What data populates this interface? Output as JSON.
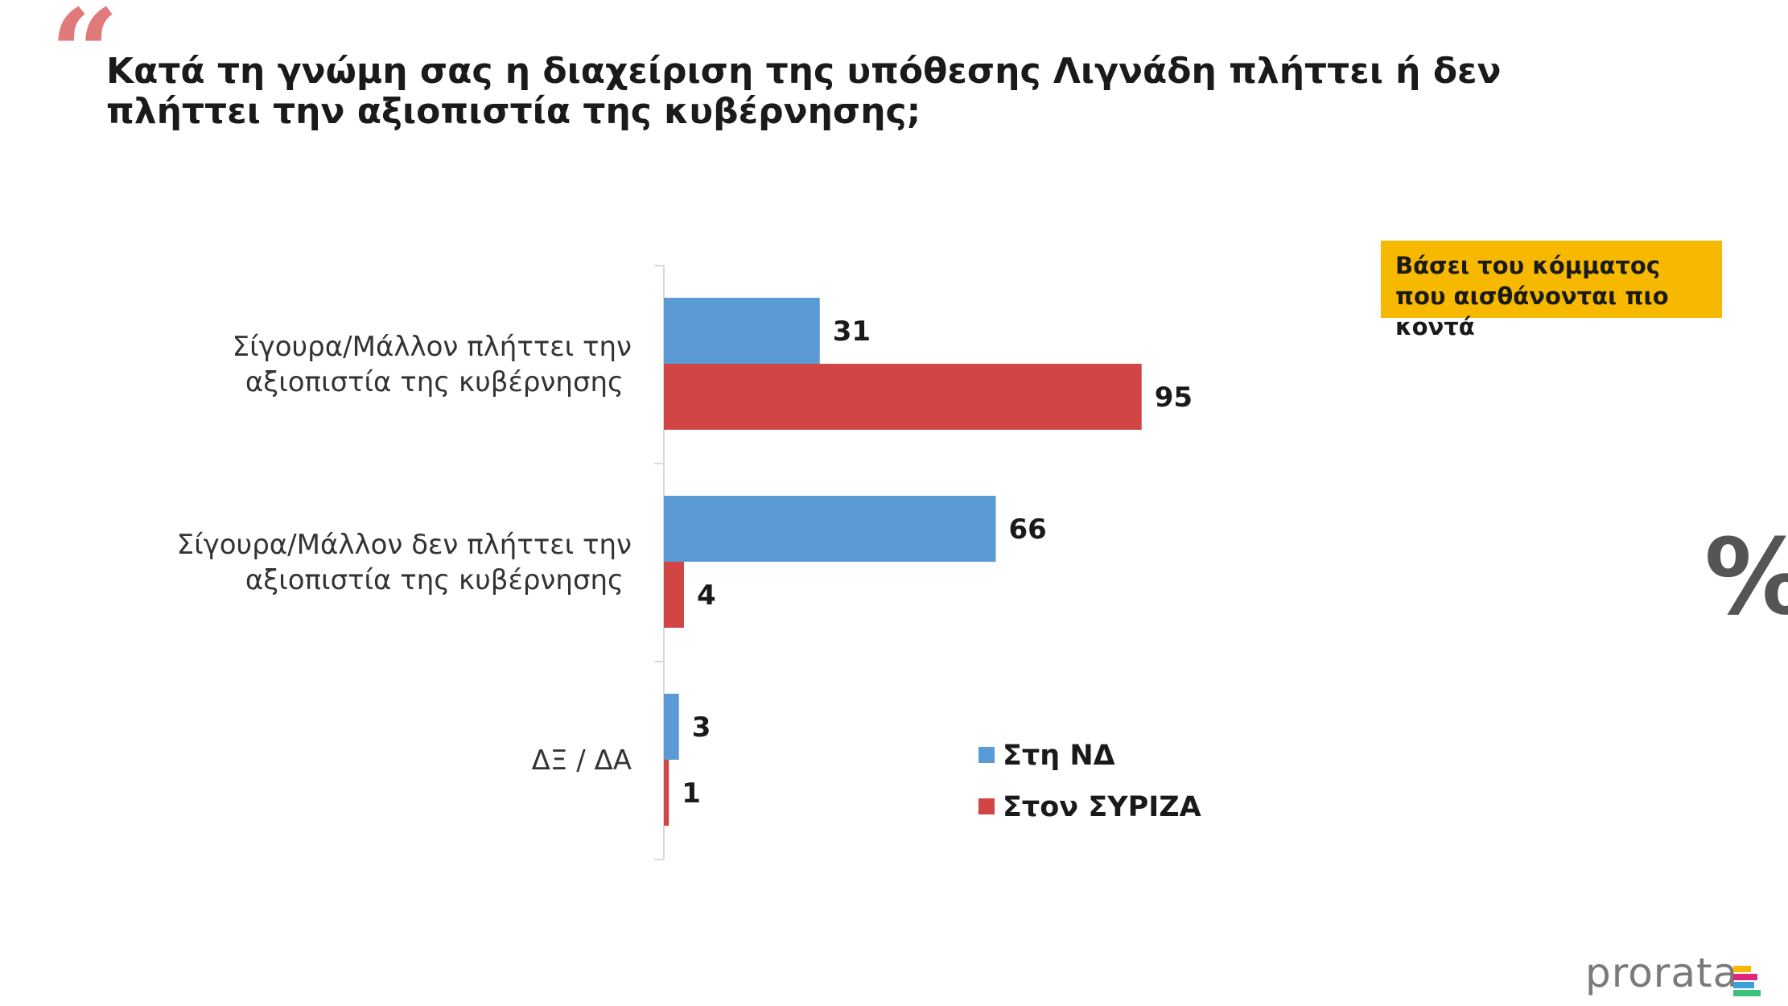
{
  "header": {
    "quote_glyph": "“",
    "title": "Κατά τη γνώμη σας η διαχείριση της υπόθεσης Λιγνάδη πλήττει ή δεν πλήττει την αξιοπιστία της κυβέρνησης;"
  },
  "note": "Βάσει του κόμματος που αισθάνονται πιο κοντά",
  "unit_symbol": "%",
  "brand": {
    "name": "prorata",
    "mark_colors": [
      "#f7b900",
      "#e0287a",
      "#3aa0d8",
      "#3cc07a"
    ]
  },
  "chart_data": {
    "type": "bar",
    "orientation": "horizontal",
    "categories": [
      [
        "Σίγουρα/Μάλλον πλήττει την",
        "αξιοπιστία της κυβέρνησης"
      ],
      [
        "Σίγουρα/Μάλλον δεν πλήττει την",
        "αξιοπιστία της κυβέρνησης"
      ],
      [
        "ΔΞ / ΔΑ"
      ]
    ],
    "series": [
      {
        "name": "Στη ΝΔ",
        "color": "#5b9bd5",
        "values": [
          31,
          66,
          3
        ]
      },
      {
        "name": "Στον ΣΥΡΙΖΑ",
        "color": "#d24545",
        "values": [
          95,
          4,
          1
        ]
      }
    ],
    "xlim": [
      0,
      100
    ],
    "grid": false,
    "legend": "bottom-right"
  }
}
